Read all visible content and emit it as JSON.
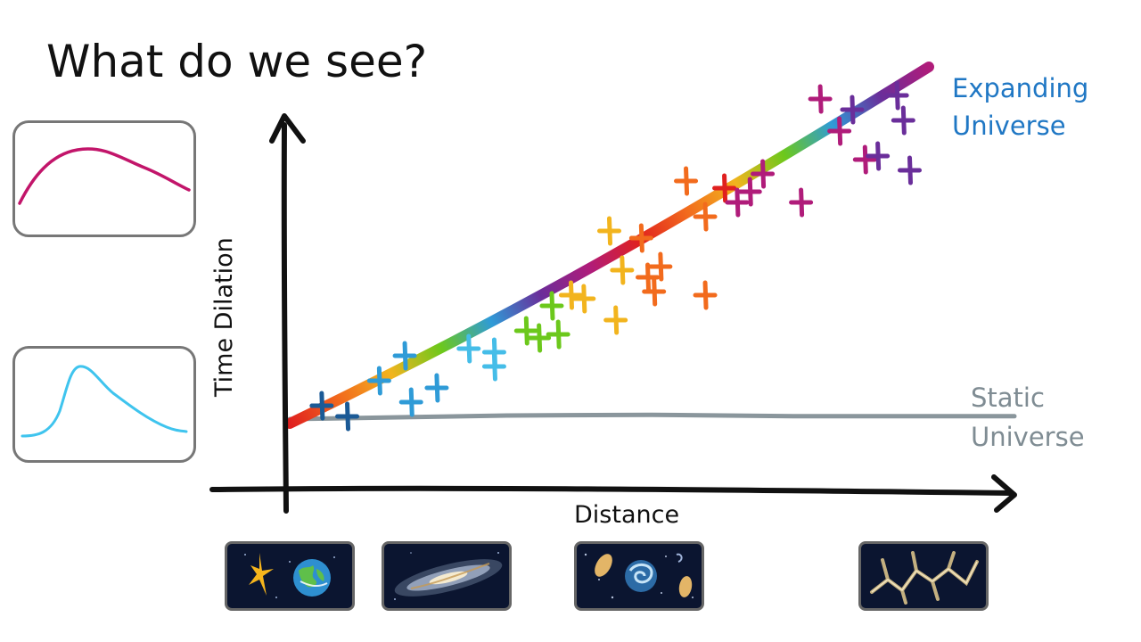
{
  "slide": {
    "title": "What do we see?"
  },
  "chart_data": {
    "type": "scatter",
    "title": "",
    "xlabel": "Distance",
    "ylabel": "Time Dilation",
    "grid": false,
    "series": [
      {
        "name": "Expanding Universe",
        "kind": "line",
        "style": "rainbow",
        "x": [
          0,
          1
        ],
        "y": [
          0,
          1
        ]
      },
      {
        "name": "Static Universe",
        "kind": "line",
        "color": "#8a969c",
        "x": [
          0,
          0.15,
          0.3,
          0.5,
          0.7,
          1
        ],
        "y": [
          0,
          0.005,
          0.01,
          0.012,
          0.008,
          0.008
        ]
      },
      {
        "name": "",
        "kind": "points",
        "points": [
          {
            "x": 0.05,
            "y": 0.05,
            "c": "#1b5a96"
          },
          {
            "x": 0.09,
            "y": 0.02,
            "c": "#1b5a96"
          },
          {
            "x": 0.14,
            "y": 0.12,
            "c": "#2f9bd7"
          },
          {
            "x": 0.19,
            "y": 0.06,
            "c": "#2f9bd7"
          },
          {
            "x": 0.18,
            "y": 0.19,
            "c": "#2f9bd7"
          },
          {
            "x": 0.23,
            "y": 0.1,
            "c": "#2f9bd7"
          },
          {
            "x": 0.28,
            "y": 0.21,
            "c": "#45bde8"
          },
          {
            "x": 0.32,
            "y": 0.2,
            "c": "#45bde8"
          },
          {
            "x": 0.32,
            "y": 0.16,
            "c": "#45bde8"
          },
          {
            "x": 0.37,
            "y": 0.26,
            "c": "#6cc81c"
          },
          {
            "x": 0.39,
            "y": 0.24,
            "c": "#6cc81c"
          },
          {
            "x": 0.41,
            "y": 0.33,
            "c": "#6cc81c"
          },
          {
            "x": 0.42,
            "y": 0.25,
            "c": "#6cc81c"
          },
          {
            "x": 0.44,
            "y": 0.36,
            "c": "#f2b41e"
          },
          {
            "x": 0.46,
            "y": 0.35,
            "c": "#f2b41e"
          },
          {
            "x": 0.51,
            "y": 0.29,
            "c": "#f2b41e"
          },
          {
            "x": 0.52,
            "y": 0.43,
            "c": "#f2b41e"
          },
          {
            "x": 0.5,
            "y": 0.54,
            "c": "#f2b41e"
          },
          {
            "x": 0.55,
            "y": 0.52,
            "c": "#f26b1d"
          },
          {
            "x": 0.56,
            "y": 0.41,
            "c": "#f26b1d"
          },
          {
            "x": 0.57,
            "y": 0.37,
            "c": "#f26b1d"
          },
          {
            "x": 0.58,
            "y": 0.44,
            "c": "#f26b1d"
          },
          {
            "x": 0.62,
            "y": 0.68,
            "c": "#f26b1d"
          },
          {
            "x": 0.65,
            "y": 0.58,
            "c": "#f26b1d"
          },
          {
            "x": 0.65,
            "y": 0.36,
            "c": "#f26b1d"
          },
          {
            "x": 0.68,
            "y": 0.66,
            "c": "#e0201f"
          },
          {
            "x": 0.7,
            "y": 0.62,
            "c": "#b01c7a"
          },
          {
            "x": 0.72,
            "y": 0.65,
            "c": "#b01c7a"
          },
          {
            "x": 0.74,
            "y": 0.7,
            "c": "#b01c7a"
          },
          {
            "x": 0.8,
            "y": 0.62,
            "c": "#b01c7a"
          },
          {
            "x": 0.83,
            "y": 0.91,
            "c": "#b01c7a"
          },
          {
            "x": 0.86,
            "y": 0.82,
            "c": "#b01c7a"
          },
          {
            "x": 0.88,
            "y": 0.88,
            "c": "#6a2e9a"
          },
          {
            "x": 0.9,
            "y": 0.74,
            "c": "#b01c7a"
          },
          {
            "x": 0.92,
            "y": 0.75,
            "c": "#6a2e9a"
          },
          {
            "x": 0.96,
            "y": 0.85,
            "c": "#6a2e9a"
          },
          {
            "x": 0.97,
            "y": 0.71,
            "c": "#6a2e9a"
          },
          {
            "x": 0.95,
            "y": 0.92,
            "c": "#6a2e9a"
          }
        ]
      }
    ]
  },
  "annotations": {
    "expanding_line1": "Expanding",
    "expanding_line2": "Universe",
    "static_line1": "Static",
    "static_line2": "Universe"
  },
  "thumbnails": {
    "light_curve_stretched_color": "#c2156a",
    "light_curve_sharp_color": "#3fc4ee"
  },
  "tiles": [
    {
      "name": "star-and-earth"
    },
    {
      "name": "galaxy"
    },
    {
      "name": "galaxy-group"
    },
    {
      "name": "cosmic-web"
    }
  ],
  "colors": {
    "expanding_label": "#1f77c4",
    "static_label": "#7f8c93",
    "axis": "#111111",
    "rainbow": [
      "#e0201f",
      "#f26b1d",
      "#f2b41e",
      "#6cc81c",
      "#2f9bd7",
      "#6a2e9a",
      "#b01c7a"
    ]
  }
}
